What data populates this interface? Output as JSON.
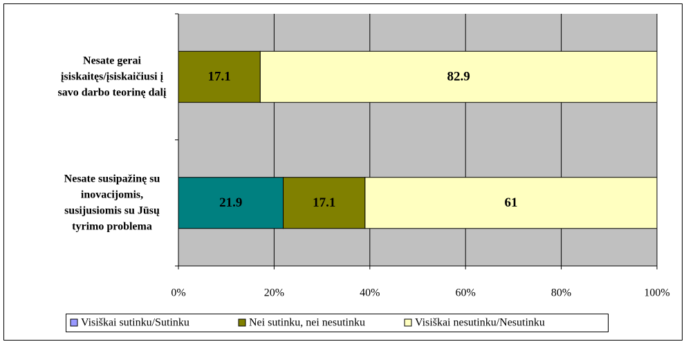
{
  "chart_data": {
    "type": "stacked_barh",
    "categories": [
      [
        "Nesate gerai",
        "įsiskaitęs/įsiskaičiusi į",
        "savo darbo teorinę dalį"
      ],
      [
        "Nesate susipažinę su",
        "inovacijomis,",
        "susijusiomis su Jūsų",
        "tyrimo problema"
      ]
    ],
    "series": [
      {
        "name": "Visiškai sutinku/Sutinku",
        "color": "#008080",
        "legend_color": "#9999ff",
        "values": [
          0,
          21.9
        ]
      },
      {
        "name": "Nei sutinku, nei nesutinku",
        "color": "#808000",
        "values": [
          17.1,
          17.1
        ]
      },
      {
        "name": "Visiškai nesutinku/Nesutinku",
        "color": "#ffffc0",
        "values": [
          82.9,
          61
        ]
      }
    ],
    "xlim": [
      0,
      100
    ],
    "xticks": [
      {
        "value": 0,
        "label": "0%"
      },
      {
        "value": 20,
        "label": "20%"
      },
      {
        "value": 40,
        "label": "40%"
      },
      {
        "value": 60,
        "label": "60%"
      },
      {
        "value": 80,
        "label": "80%"
      },
      {
        "value": 100,
        "label": "100%"
      }
    ],
    "grid": true,
    "legend": "bottom"
  }
}
